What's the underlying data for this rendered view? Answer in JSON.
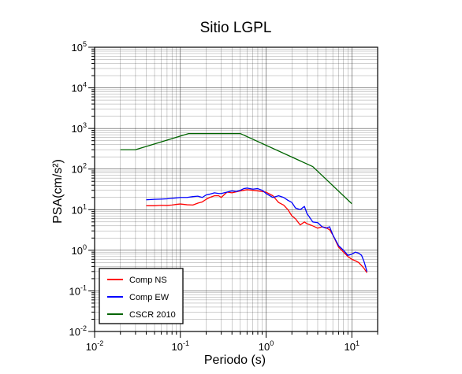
{
  "chart_data": {
    "type": "line",
    "title": "Sitio LGPL",
    "xlabel": "Periodo (s)",
    "ylabel": "PSA(cm/s²)",
    "x_scale": "log",
    "y_scale": "log",
    "xlim": [
      0.01,
      20
    ],
    "ylim": [
      0.01,
      100000
    ],
    "grid": true,
    "legend_position": "bottom-left",
    "x_tick_labels": [
      {
        "base": "10",
        "exp": "-2"
      },
      {
        "base": "10",
        "exp": "-1"
      },
      {
        "base": "10",
        "exp": "0"
      },
      {
        "base": "10",
        "exp": "1"
      }
    ],
    "y_tick_labels": [
      {
        "base": "10",
        "exp": "5"
      },
      {
        "base": "10",
        "exp": "4"
      },
      {
        "base": "10",
        "exp": "3"
      },
      {
        "base": "10",
        "exp": "2"
      },
      {
        "base": "10",
        "exp": "1"
      },
      {
        "base": "10",
        "exp": "0"
      },
      {
        "base": "10",
        "exp": "-1"
      },
      {
        "base": "10",
        "exp": "-2"
      }
    ],
    "series": [
      {
        "name": "Comp NS",
        "color": "#ff0000",
        "x": [
          0.04,
          0.05,
          0.06,
          0.07,
          0.08,
          0.09,
          0.1,
          0.12,
          0.14,
          0.16,
          0.18,
          0.2,
          0.22,
          0.25,
          0.28,
          0.3,
          0.35,
          0.4,
          0.45,
          0.5,
          0.55,
          0.6,
          0.7,
          0.8,
          0.9,
          1.0,
          1.2,
          1.4,
          1.6,
          1.8,
          2.0,
          2.2,
          2.5,
          2.8,
          3.0,
          3.5,
          4.0,
          4.5,
          5.0,
          5.5,
          6.0,
          7.0,
          8.0,
          9.0,
          10.0,
          11.0,
          12.0,
          13.0,
          14.0,
          15.0
        ],
        "y": [
          12.5,
          12.5,
          12.8,
          12.7,
          13.0,
          13.5,
          13.8,
          13.2,
          13.0,
          14.5,
          15.5,
          18.0,
          20.0,
          22.0,
          22.0,
          20.0,
          27.0,
          26.0,
          27.5,
          29.0,
          30.0,
          31.0,
          30.0,
          29.0,
          28.0,
          27.0,
          22.0,
          15.0,
          13.0,
          10.0,
          7.0,
          6.0,
          4.2,
          5.0,
          4.5,
          4.0,
          3.5,
          3.8,
          3.6,
          3.2,
          2.4,
          1.2,
          0.9,
          0.7,
          0.6,
          0.55,
          0.5,
          0.42,
          0.35,
          0.28
        ]
      },
      {
        "name": "Comp EW",
        "color": "#0000ff",
        "x": [
          0.04,
          0.05,
          0.06,
          0.07,
          0.08,
          0.09,
          0.1,
          0.12,
          0.14,
          0.16,
          0.18,
          0.2,
          0.22,
          0.25,
          0.28,
          0.3,
          0.35,
          0.4,
          0.45,
          0.5,
          0.55,
          0.6,
          0.7,
          0.8,
          0.9,
          1.0,
          1.2,
          1.4,
          1.6,
          1.8,
          2.0,
          2.2,
          2.5,
          2.8,
          3.0,
          3.5,
          4.0,
          4.5,
          5.0,
          5.5,
          6.0,
          7.0,
          8.0,
          9.0,
          10.0,
          11.0,
          12.0,
          13.0,
          14.0,
          15.0
        ],
        "y": [
          17.5,
          18.0,
          18.2,
          18.5,
          19.0,
          19.5,
          20.0,
          20.0,
          21.0,
          21.5,
          20.0,
          23.0,
          24.0,
          26.0,
          25.0,
          25.0,
          27.0,
          29.0,
          28.0,
          30.0,
          33.0,
          34.0,
          32.0,
          33.0,
          30.0,
          25.0,
          20.0,
          22.0,
          20.0,
          17.0,
          15.0,
          11.0,
          10.0,
          12.0,
          8.0,
          5.0,
          4.8,
          3.8,
          3.5,
          3.8,
          2.4,
          1.3,
          1.0,
          0.75,
          0.8,
          0.9,
          0.85,
          0.75,
          0.5,
          0.3
        ]
      },
      {
        "name": "CSCR 2010",
        "color": "#006400",
        "x": [
          0.02,
          0.03,
          0.125,
          0.5,
          3.5,
          10.0
        ],
        "y": [
          300,
          300,
          750,
          750,
          115,
          14
        ]
      }
    ]
  }
}
